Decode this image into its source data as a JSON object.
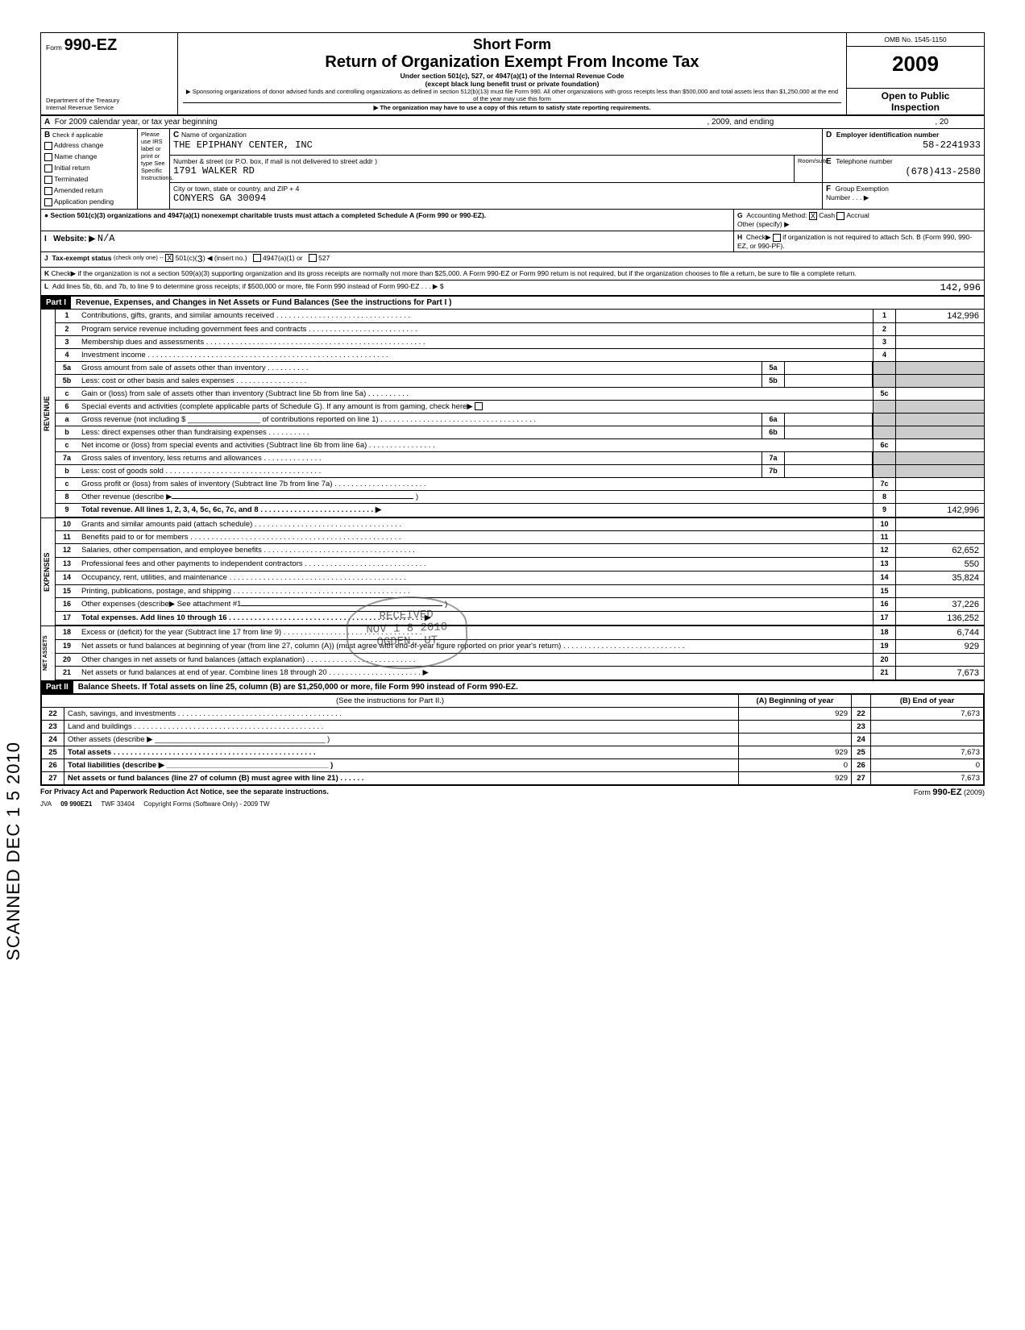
{
  "header": {
    "form_label": "Form",
    "form_number": "990-EZ",
    "title1": "Short Form",
    "title2": "Return of Organization Exempt From Income Tax",
    "subtitle1": "Under section 501(c), 527, or 4947(a)(1) of the Internal Revenue Code",
    "subtitle2": "(except black lung benefit trust or private foundation)",
    "note1": "▶ Sponsoring organizations of donor advised funds and controlling organizations as defined in section 512(b)(13) must file Form 990. All other organizations with gross receipts less than $500,000 and total assets less than $1,250,000 at the end of the year may use this form",
    "note2": "▶ The organization may have to use a copy of this return to satisfy state reporting requirements.",
    "dept": "Department of the Treasury",
    "irs": "Internal Revenue Service",
    "omb": "OMB No. 1545-1150",
    "year": "2009",
    "open": "Open to Public",
    "inspection": "Inspection"
  },
  "lineA": "For 2009 calendar year, or tax year beginning",
  "lineA_mid": ", 2009, and ending",
  "lineA_end": ", 20",
  "sectionB": {
    "label": "Check if applicable",
    "items": [
      "Address change",
      "Name change",
      "Initial return",
      "Terminated",
      "Amended return",
      "Application pending"
    ],
    "please": "Please use IRS label or print or type See Specific Instructions."
  },
  "sectionC": {
    "c_label": "Name of organization",
    "org_name": "THE EPIPHANY CENTER, INC",
    "addr_label": "Number & street (or P.O. box, if mail is not delivered to street addr )",
    "room": "Room/suite",
    "street": "1791 WALKER RD",
    "city_label": "City or town, state or country, and ZIP + 4",
    "city": "CONYERS GA 30094"
  },
  "sectionD": {
    "label": "Employer identification number",
    "value": "58-2241933"
  },
  "sectionE": {
    "label": "Telephone number",
    "value": "(678)413-2580"
  },
  "sectionF": {
    "label": "Group Exemption",
    "num": "Number . . . ▶"
  },
  "bullet501": "Section 501(c)(3) organizations and 4947(a)(1) nonexempt charitable trusts must attach a completed Schedule A (Form 990 or 990-EZ).",
  "sectionG": {
    "label": "Accounting Method:",
    "cash": "Cash",
    "accrual": "Accrual",
    "other": "Other (specify) ▶"
  },
  "sectionH": {
    "label": "Check▶",
    "text": "if organization is not required to attach Sch. B (Form 990, 990-EZ, or 990-PF)."
  },
  "lineI": {
    "label": "Website: ▶",
    "value": "N/A"
  },
  "lineJ": {
    "label": "Tax-exempt status",
    "note": "(check only one) --",
    "c501": "501(c)(",
    "c501val": "3",
    "insert": ") ◀ (insert no.)",
    "a4947": "4947(a)(1) or",
    "c527": "527"
  },
  "lineK": "Check▶        if the organization is not a section 509(a)(3) supporting organization and its gross receipts are normally not more than $25,000. A Form 990-EZ or Form 990 return is not required, but if the organization chooses to file a return, be sure to file a complete return.",
  "lineL": {
    "text": "Add lines 5b, 6b, and 7b, to line 9 to determine gross receipts; if $500,000 or more, file Form 990 instead of Form 990-EZ . . .  ▶  $",
    "value": "142,996"
  },
  "part1": {
    "label": "Part I",
    "title": "Revenue, Expenses, and Changes in Net Assets or Fund Balances (See the instructions for Part I )",
    "revenue_label": "REVENUE",
    "expenses_label": "EXPENSES",
    "netassets_label": "NET ASSETS",
    "lines": {
      "1": {
        "desc": "Contributions, gifts, grants, and similar amounts received . . . .      . . . . . . . . . . . . . . . . . . . .  . . . . . . . .",
        "val": "142,996"
      },
      "2": {
        "desc": "Program service revenue including government fees and contracts  . . . . . . . .   . . . . .   . . . . . . . . . . . . .",
        "val": ""
      },
      "3": {
        "desc": "Membership dues and assessments . .  . . . . . . . . . . .   . . . . . . . . . . . . . . . . . . .   . . . . . . .  . . . . . . . . . . . . .",
        "val": ""
      },
      "4": {
        "desc": "Investment income  . . . . . . . . . .     . . . . . . . . . . . .   . . . . . . . . . . . . . . . . . . . .    . . . . . . . . .  . . . . . .",
        "val": ""
      },
      "5a": {
        "desc": "Gross amount from sale of assets other than inventory .  . . . . . . . . .",
        "box": "5a",
        "val": ""
      },
      "5b": {
        "desc": "Less: cost or other basis and sales expenses . . . . . . . . .   . . . . . . . .",
        "box": "5b",
        "val": ""
      },
      "5c": {
        "desc": "Gain or (loss) from sale of assets other than inventory (Subtract line 5b from line 5a)   . . . . . .      . . . .",
        "val": ""
      },
      "6": {
        "desc": "Special events and activities (complete applicable parts of Schedule G). If any amount is from gaming, check here▶"
      },
      "6a": {
        "desc": "Gross revenue (not including $ _________________ of contributions reported on line 1) . .  . .    . . . . . . . . . . .  . . . . . . . . . . . . . . . . . . . . . .",
        "box": "6a",
        "val": ""
      },
      "6b": {
        "desc": "Less: direct expenses other than fundraising expenses .  . . . . . . . . .",
        "box": "6b",
        "val": ""
      },
      "6c": {
        "desc": "Net income or (loss) from special events and activities (Subtract line 6b from line 6a) . . . . . . . . .  . . . . . . .",
        "val": ""
      },
      "7a": {
        "desc": "Gross sales of inventory, less returns and allowances . . . . . . . . . . . . . .",
        "box": "7a",
        "val": ""
      },
      "7b": {
        "desc": "Less: cost of goods sold  . . . .  . .  . . . . . . . . . . . .  . . . . . . . . . . . . . . . . . . .",
        "box": "7b",
        "val": ""
      },
      "7c": {
        "desc": "Gross profit or (loss) from sales of inventory (Subtract line 7b from line 7a) .   . . . . . . . .  . . . . . . . . . . . . .",
        "val": ""
      },
      "8": {
        "desc": "Other revenue (describe ▶",
        "val": ""
      },
      "9": {
        "desc": "Total revenue. All lines 1, 2, 3, 4, 5c, 6c, 7c, and 8 . . . . . . . . . . . . . . . . . . . . . .  . . . . .    ▶",
        "val": "142,996"
      },
      "10": {
        "desc": "Grants and similar amounts paid (attach schedule)  . . . .    . . . . .    . . . . . . . . . . . . . . . .  . . . . . . . . . .",
        "val": ""
      },
      "11": {
        "desc": "Benefits paid to or for members . . . . . . . . . . . . . . . . . . . . . . . . . . . . .    . . . . . . .  . . . . . .  . . . . . . . .",
        "val": ""
      },
      "12": {
        "desc": "Salaries, other compensation, and employee benefits . . . . .    . . . .   . .  . . . . . . . . . . . . . . . . . . . . . . . . .",
        "val": "62,652"
      },
      "13": {
        "desc": "Professional fees and other payments to independent contractors . . .    . . . . . . . . . . . . . . . .  . . . . . . . . . .",
        "val": "550"
      },
      "14": {
        "desc": "Occupancy, rent, utilities, and maintenance . . . . . . . . . . . . . . . . . . . .    . . . . . . .  . . . . . . .  . . . . . . . .",
        "val": "35,824"
      },
      "15": {
        "desc": "Printing, publications, postage, and shipping  . . . . . . .    . . . . .    . . . . . . .  . . . . . . . . . . . . . . . . . . . . . . .",
        "val": ""
      },
      "16": {
        "desc": "Other expenses (describe▶ See attachment #1",
        "val": "37,226"
      },
      "17": {
        "desc": "Total expenses. Add lines 10 through 16 . . . .  . .  . . . . . . . . . . . .  . . . . . . . . . . . . . . . . . . .   . . . . . . . . .      ▶",
        "val": "136,252"
      },
      "18": {
        "desc": "Excess or (deficit) for the year (Subtract line 17 from line 9) . . . . . . . . .    . . . .  . . . . . . . . . . . . . . . . . . . .",
        "val": "6,744"
      },
      "19": {
        "desc": "Net assets or fund balances at beginning of year (from line 27, column (A)) (must agree with end-of-year figure reported on prior year's return) . . . .     . . . . . . . . . . . . . .  . . .   . . . .  . . . .",
        "val": "929"
      },
      "20": {
        "desc": "Other changes in net assets or fund balances (attach explanation) .  . . . . . . . . .   . . . . . . . .  . . . .  . . . .",
        "val": ""
      },
      "21": {
        "desc": "Net assets or fund balances at end of year. Combine lines 18 through 20 . . . . .  . . . . . . . . .  . . . . . . . .     ▶",
        "val": "7,673"
      }
    }
  },
  "part2": {
    "label": "Part II",
    "title": "Balance Sheets.  If Total assets on line 25, column (B) are $1,250,000 or more, file Form 990 instead of Form 990-EZ.",
    "instruction": "(See the instructions for Part II.)",
    "colA": "(A) Beginning of year",
    "colB": "(B) End of year",
    "rows": [
      {
        "num": "22",
        "desc": "Cash, savings, and investments  . . . . . . . . . . . . . . . . . . . . . . . . . . . . . . . . . . .    . . . .",
        "a": "929",
        "b": "7,673"
      },
      {
        "num": "23",
        "desc": "Land and buildings .   . . . . .  . .   . . .  . . . . . . . . . . . . . . . . . .   .  . . . . . . . . . . . . . . .",
        "a": "",
        "b": ""
      },
      {
        "num": "24",
        "desc": "Other assets (describe ▶ ________________________________________ )",
        "a": "",
        "b": ""
      },
      {
        "num": "25",
        "desc": "Total assets .  .  . . . . . . . . . . . . .  . . . . . . .   . . . . .   . . . . . . . . . . .  . . . . . . . . . .",
        "a": "929",
        "b": "7,673"
      },
      {
        "num": "26",
        "desc": "Total liabilities (describe ▶ ______________________________________ )",
        "a": "0",
        "b": "0"
      },
      {
        "num": "27",
        "desc": "Net assets or fund balances (line 27 of column (B) must agree with line 21)  . .  . . . .",
        "a": "929",
        "b": "7,673"
      }
    ]
  },
  "footer": {
    "privacy": "For Privacy Act and Paperwork Reduction Act Notice, see the separate instructions.",
    "form": "Form 990-EZ (2009)",
    "jva": "JVA",
    "code": "09  990EZ1",
    "twf": "TWF 33404",
    "copyright": "Copyright Forms (Software Only) - 2009 TW"
  },
  "stamps": {
    "received": "RECEIVED",
    "date": "NOV 1 8 2010",
    "ogden": "OGDEN, UT",
    "scanned": "SCANNED DEC 1 5 2010"
  }
}
